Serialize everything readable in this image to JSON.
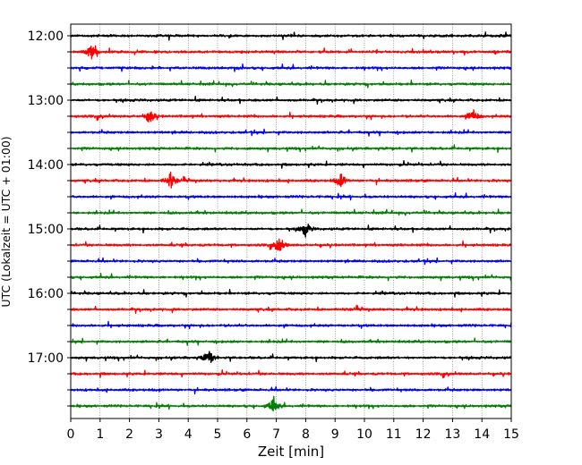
{
  "chart_data": {
    "type": "line",
    "title": "",
    "xlabel": "Zeit  [min]",
    "ylabel": "UTC (Lokalzeit = UTC + 01:00)",
    "xlim": [
      0,
      15
    ],
    "x_ticks": [
      0,
      1,
      2,
      3,
      4,
      5,
      6,
      7,
      8,
      9,
      10,
      11,
      12,
      13,
      14,
      15
    ],
    "x_tick_labels": [
      "0",
      "1",
      "2",
      "3",
      "4",
      "5",
      "6",
      "7",
      "8",
      "9",
      "10",
      "11",
      "12",
      "13",
      "14",
      "15"
    ],
    "x_grid": true,
    "y_tick_labels": [
      "12:00",
      "13:00",
      "14:00",
      "15:00",
      "16:00",
      "17:00"
    ],
    "trace_start_times": [
      "12:00",
      "12:15",
      "12:30",
      "12:45",
      "13:00",
      "13:15",
      "13:30",
      "13:45",
      "14:00",
      "14:15",
      "14:30",
      "14:45",
      "15:00",
      "15:15",
      "15:30",
      "15:45",
      "16:00",
      "16:15",
      "16:30",
      "16:45",
      "17:00",
      "17:15",
      "17:30",
      "17:45"
    ],
    "trace_colors": [
      "#000000",
      "#ff0000",
      "#0000ff",
      "#008000"
    ],
    "notable_events": [
      {
        "trace": "12:15",
        "minute": 0.7
      },
      {
        "trace": "13:15",
        "minute": 2.7
      },
      {
        "trace": "13:15",
        "minute": 13.7
      },
      {
        "trace": "14:15",
        "minute": 3.4
      },
      {
        "trace": "14:15",
        "minute": 9.2
      },
      {
        "trace": "15:15",
        "minute": 7.1
      },
      {
        "trace": "15:00",
        "minute": 8.0
      },
      {
        "trace": "17:00",
        "minute": 4.7
      },
      {
        "trace": "17:45",
        "minute": 6.9
      }
    ]
  }
}
